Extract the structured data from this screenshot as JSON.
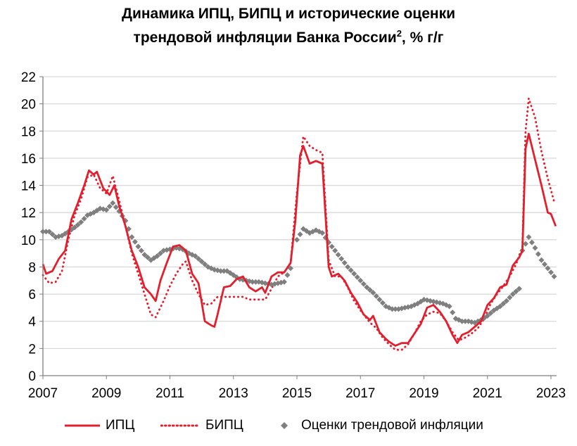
{
  "title": {
    "line1": "Динамика ИПЦ, БИПЦ и исторические оценки",
    "line2": "трендовой инфляции Банка России",
    "sup": "2",
    "line2_end": ", % г/г"
  },
  "colors": {
    "cpi": "#e31e2d",
    "core": "#e31e2d",
    "trend": "#7f7f7f",
    "grid": "#d9d9d9",
    "axis": "#808080"
  },
  "chart_data": {
    "type": "line",
    "title": "Динамика ИПЦ, БИПЦ и исторические оценки трендовой инфляции Банка России², % г/г",
    "ylim": [
      0,
      22
    ],
    "yticks": [
      "0",
      "2",
      "4",
      "6",
      "8",
      "10",
      "12",
      "14",
      "16",
      "18",
      "20",
      "22"
    ],
    "xlim": [
      2007,
      2023.2
    ],
    "xticks": [
      "2007",
      "2009",
      "2011",
      "2013",
      "2015",
      "2017",
      "2019",
      "2021",
      "2023"
    ],
    "grid": "horizontal",
    "legend_position": "bottom",
    "series": [
      {
        "name": "ИПЦ",
        "style": "solid",
        "x": [
          2007.0,
          2007.1,
          2007.3,
          2007.5,
          2007.7,
          2007.9,
          2008.1,
          2008.3,
          2008.45,
          2008.6,
          2008.7,
          2008.9,
          2009.1,
          2009.25,
          2009.4,
          2009.6,
          2009.8,
          2010.0,
          2010.2,
          2010.4,
          2010.55,
          2010.7,
          2010.9,
          2011.1,
          2011.3,
          2011.5,
          2011.7,
          2011.9,
          2012.1,
          2012.3,
          2012.4,
          2012.5,
          2012.7,
          2012.9,
          2013.1,
          2013.3,
          2013.5,
          2013.7,
          2013.9,
          2014.0,
          2014.2,
          2014.4,
          2014.6,
          2014.8,
          2014.95,
          2015.1,
          2015.2,
          2015.4,
          2015.6,
          2015.8,
          2016.0,
          2016.1,
          2016.3,
          2016.5,
          2016.7,
          2016.9,
          2017.1,
          2017.3,
          2017.4,
          2017.6,
          2017.8,
          2017.9,
          2018.1,
          2018.3,
          2018.5,
          2018.7,
          2018.9,
          2019.1,
          2019.3,
          2019.5,
          2019.7,
          2019.9,
          2020.05,
          2020.2,
          2020.4,
          2020.6,
          2020.8,
          2021.0,
          2021.2,
          2021.4,
          2021.6,
          2021.8,
          2022.0,
          2022.1,
          2022.2,
          2022.3,
          2022.5,
          2022.7,
          2022.9,
          2023.0,
          2023.15
        ],
        "y": [
          8.2,
          7.5,
          7.7,
          8.6,
          9.2,
          11.5,
          12.7,
          14.0,
          15.1,
          14.8,
          15.0,
          13.8,
          13.3,
          14.0,
          12.5,
          11.0,
          9.2,
          8.0,
          6.5,
          6.0,
          5.5,
          7.0,
          8.3,
          9.5,
          9.6,
          9.2,
          7.5,
          6.8,
          4.0,
          3.7,
          3.6,
          4.5,
          6.5,
          6.6,
          7.1,
          7.3,
          6.5,
          6.2,
          6.5,
          6.1,
          7.3,
          7.6,
          7.6,
          8.3,
          11.4,
          16.2,
          16.9,
          15.6,
          15.8,
          15.6,
          8.0,
          7.3,
          7.5,
          7.0,
          6.1,
          5.4,
          4.5,
          4.1,
          4.4,
          3.2,
          2.7,
          2.5,
          2.2,
          2.4,
          2.4,
          3.1,
          3.8,
          5.0,
          5.2,
          4.7,
          4.0,
          3.0,
          2.4,
          3.0,
          3.2,
          3.6,
          4.0,
          5.2,
          5.7,
          6.5,
          6.7,
          8.1,
          8.7,
          9.2,
          16.7,
          17.8,
          15.9,
          14.0,
          12.0,
          11.9,
          11.0
        ]
      },
      {
        "name": "БИПЦ",
        "style": "dotted",
        "x": [
          2007.0,
          2007.2,
          2007.4,
          2007.6,
          2007.8,
          2008.0,
          2008.2,
          2008.4,
          2008.6,
          2008.8,
          2009.0,
          2009.2,
          2009.4,
          2009.6,
          2009.8,
          2010.0,
          2010.2,
          2010.4,
          2010.55,
          2010.8,
          2011.0,
          2011.2,
          2011.4,
          2011.5,
          2011.7,
          2011.9,
          2012.1,
          2012.3,
          2012.5,
          2012.7,
          2012.9,
          2013.1,
          2013.3,
          2013.5,
          2013.7,
          2013.9,
          2014.0,
          2014.2,
          2014.4,
          2014.6,
          2014.8,
          2015.0,
          2015.2,
          2015.4,
          2015.6,
          2015.8,
          2016.0,
          2016.2,
          2016.4,
          2016.6,
          2016.8,
          2017.0,
          2017.3,
          2017.5,
          2017.7,
          2017.9,
          2018.1,
          2018.3,
          2018.5,
          2018.7,
          2018.9,
          2019.1,
          2019.3,
          2019.5,
          2019.7,
          2019.9,
          2020.1,
          2020.3,
          2020.5,
          2020.7,
          2020.9,
          2021.1,
          2021.3,
          2021.5,
          2021.7,
          2021.9,
          2022.1,
          2022.2,
          2022.3,
          2022.5,
          2022.7,
          2022.9,
          2023.1
        ],
        "y": [
          7.4,
          6.8,
          6.9,
          7.7,
          10.0,
          11.8,
          13.0,
          14.6,
          14.8,
          13.8,
          13.4,
          14.7,
          12.9,
          11.0,
          9.0,
          7.5,
          6.0,
          4.5,
          4.3,
          5.5,
          6.6,
          7.5,
          8.2,
          8.4,
          7.0,
          6.0,
          5.2,
          5.3,
          5.8,
          5.8,
          5.8,
          5.8,
          5.8,
          5.6,
          5.6,
          5.6,
          5.6,
          6.4,
          7.3,
          7.6,
          8.3,
          13.5,
          17.6,
          16.9,
          16.6,
          16.4,
          8.5,
          7.3,
          7.3,
          6.5,
          5.5,
          4.8,
          3.9,
          3.5,
          2.8,
          2.3,
          1.9,
          1.9,
          2.3,
          3.1,
          4.0,
          4.5,
          4.7,
          4.6,
          4.0,
          3.2,
          2.6,
          2.8,
          3.1,
          3.5,
          4.2,
          5.3,
          6.0,
          6.6,
          7.3,
          8.2,
          9.5,
          18.0,
          20.4,
          19.0,
          16.5,
          14.5,
          12.8
        ]
      },
      {
        "name": "Оценки трендовой инфляции",
        "style": "markers",
        "x": [
          2007.0,
          2007.2,
          2007.4,
          2007.6,
          2007.8,
          2008.0,
          2008.2,
          2008.4,
          2008.6,
          2008.8,
          2009.0,
          2009.2,
          2009.4,
          2009.6,
          2009.8,
          2010.0,
          2010.2,
          2010.4,
          2010.6,
          2010.8,
          2011.0,
          2011.2,
          2011.4,
          2011.6,
          2011.8,
          2012.0,
          2012.2,
          2012.4,
          2012.6,
          2012.8,
          2013.0,
          2013.2,
          2013.4,
          2013.6,
          2013.8,
          2014.0,
          2014.2,
          2014.4,
          2014.6,
          2014.8,
          2015.0,
          2015.2,
          2015.4,
          2015.6,
          2015.8,
          2016.0,
          2016.2,
          2016.4,
          2016.6,
          2016.8,
          2017.0,
          2017.2,
          2017.4,
          2017.6,
          2017.8,
          2018.0,
          2018.2,
          2018.4,
          2018.6,
          2018.8,
          2019.0,
          2019.2,
          2019.4,
          2019.6,
          2019.8,
          2020.0,
          2020.2,
          2020.4,
          2020.6,
          2020.8,
          2021.0,
          2021.2,
          2021.4,
          2021.6,
          2021.8,
          2022.0,
          2022.1,
          2022.3,
          2022.5,
          2022.7,
          2022.9,
          2023.1
        ],
        "y": [
          10.6,
          10.6,
          10.2,
          10.3,
          10.6,
          10.9,
          11.3,
          11.8,
          12.0,
          12.3,
          12.2,
          12.7,
          12.1,
          11.4,
          10.2,
          9.5,
          8.9,
          8.5,
          8.8,
          9.2,
          9.3,
          9.4,
          9.3,
          9.0,
          8.8,
          8.4,
          8.0,
          7.8,
          7.7,
          7.7,
          7.4,
          7.1,
          7.0,
          6.9,
          6.9,
          6.8,
          6.7,
          6.8,
          6.9,
          7.9,
          10.0,
          10.8,
          10.5,
          10.7,
          10.5,
          9.8,
          9.2,
          8.6,
          8.0,
          7.5,
          7.0,
          6.5,
          6.1,
          5.6,
          5.1,
          4.9,
          4.9,
          5.0,
          5.1,
          5.3,
          5.6,
          5.5,
          5.4,
          5.3,
          5.1,
          4.2,
          4.0,
          4.0,
          3.9,
          4.1,
          4.4,
          4.8,
          5.1,
          5.5,
          6.0,
          6.4,
          9.2,
          10.2,
          9.4,
          8.5,
          7.9,
          7.3
        ]
      }
    ]
  },
  "legend": {
    "cpi": "ИПЦ",
    "core": "БИПЦ",
    "trend": "Оценки трендовой инфляции"
  }
}
